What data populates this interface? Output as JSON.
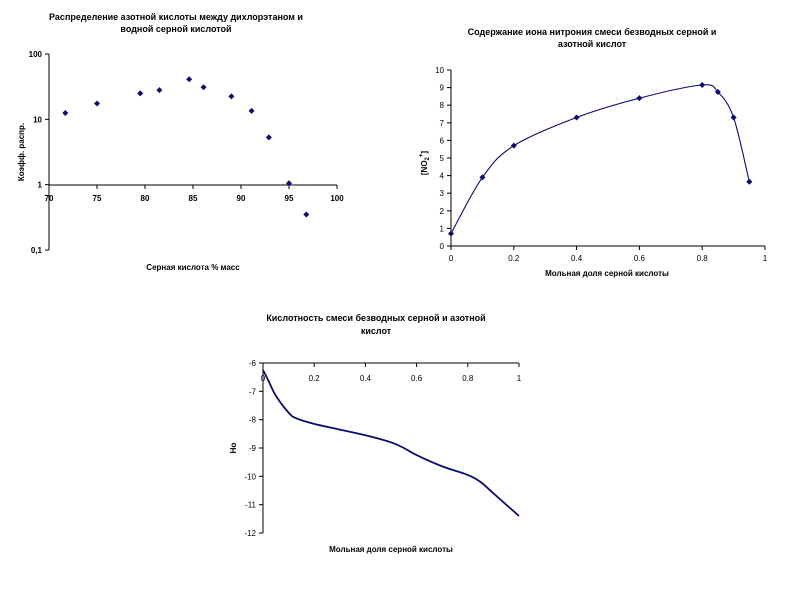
{
  "chart_data": [
    {
      "type": "scatter",
      "title_lines": [
        "Распределение азотной кислоты между дихлорэтаном и",
        "водной серной кислотой"
      ],
      "xlabel": "Серная кислота % масс",
      "ylabel": "Коэфф. распр.",
      "xlim": [
        70,
        100
      ],
      "ylim": [
        0.1,
        100
      ],
      "yscale": "log",
      "xticks": [
        "70",
        "75",
        "80",
        "85",
        "90",
        "95",
        "100"
      ],
      "yticks": [
        "0,1",
        "1",
        "10",
        "100"
      ],
      "series": [
        {
          "name": "",
          "x": [
            71.7,
            75.0,
            79.5,
            81.5,
            84.6,
            86.1,
            89.0,
            91.1,
            92.9,
            95.0,
            96.8
          ],
          "y": [
            12.5,
            17.5,
            25.0,
            28.0,
            41.0,
            31.0,
            22.5,
            13.5,
            5.3,
            1.05,
            0.35
          ]
        }
      ]
    },
    {
      "type": "line",
      "title_lines": [
        "Содержание иона нитрония смеси безводных серной и",
        "азотной кислот"
      ],
      "xlabel": "Мольная доля серной кислоты",
      "ylabel_main": "[NO",
      "ylabel_sub": "2",
      "ylabel_sup": "+",
      "ylabel_end": "]",
      "xlim": [
        0,
        1
      ],
      "ylim": [
        0,
        10
      ],
      "xticks": [
        "0",
        "0.2",
        "0.4",
        "0.6",
        "0.8",
        "1"
      ],
      "yticks": [
        "0",
        "1",
        "2",
        "3",
        "4",
        "5",
        "6",
        "7",
        "8",
        "9",
        "10"
      ],
      "series": [
        {
          "name": "",
          "x": [
            0,
            0.1,
            0.2,
            0.4,
            0.6,
            0.8,
            0.85,
            0.9,
            0.95
          ],
          "y": [
            0.7,
            3.9,
            5.7,
            7.3,
            8.4,
            9.15,
            8.75,
            7.3,
            3.65
          ]
        }
      ]
    },
    {
      "type": "line",
      "title_lines": [
        "Кислотность смеси безводных серной и азотной",
        "кислот"
      ],
      "xlabel": "Мольная доля серной кислоты",
      "ylabel": "Ho",
      "xlim": [
        0,
        1
      ],
      "ylim": [
        -12,
        -6
      ],
      "xticks": [
        "0",
        "0.2",
        "0.4",
        "0.6",
        "0.8",
        "1"
      ],
      "yticks": [
        "-6",
        "-7",
        "-8",
        "-9",
        "-10",
        "-11",
        "-12"
      ],
      "series": [
        {
          "name": "",
          "x": [
            0,
            0.02,
            0.05,
            0.1,
            0.13,
            0.2,
            0.3,
            0.4,
            0.5,
            0.55,
            0.6,
            0.7,
            0.8,
            0.85,
            0.9,
            0.95,
            1.0
          ],
          "y": [
            -6.25,
            -6.6,
            -7.15,
            -7.75,
            -7.95,
            -8.15,
            -8.35,
            -8.55,
            -8.8,
            -9.0,
            -9.25,
            -9.65,
            -9.95,
            -10.2,
            -10.6,
            -11.0,
            -11.4
          ]
        }
      ]
    }
  ]
}
